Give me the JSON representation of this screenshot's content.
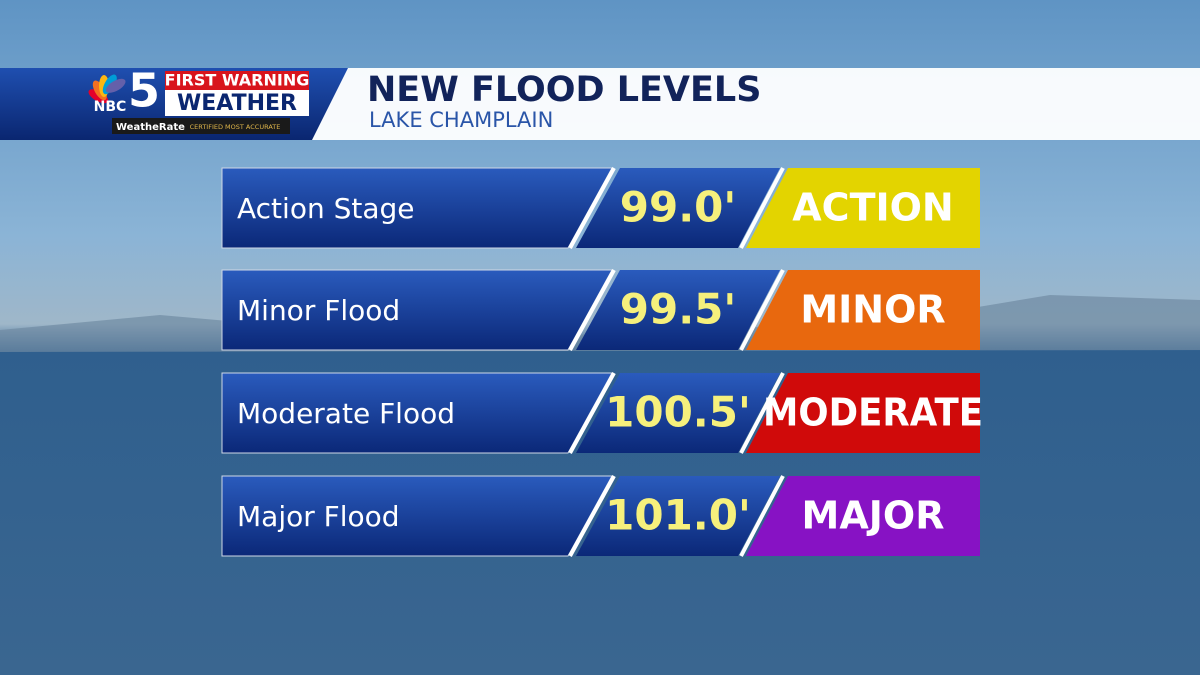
{
  "header": {
    "network": "NBC",
    "channel": "5",
    "brand_top": "FIRST WARNING",
    "brand_bottom": "WEATHER",
    "badge_name": "WeatheRate",
    "badge_text": "CERTIFIED MOST ACCURATE",
    "title": "NEW FLOOD LEVELS",
    "subtitle": "LAKE CHAMPLAIN"
  },
  "rows": [
    {
      "label": "Action Stage",
      "level": "99.0'",
      "category": "ACTION",
      "color": "#e3d400"
    },
    {
      "label": "Minor Flood",
      "level": "99.5'",
      "category": "MINOR",
      "color": "#e8680e"
    },
    {
      "label": "Moderate Flood",
      "level": "100.5'",
      "category": "MODERATE",
      "color": "#d00a0a"
    },
    {
      "label": "Major Flood",
      "level": "101.0'",
      "category": "MAJOR",
      "color": "#8712c4"
    }
  ]
}
